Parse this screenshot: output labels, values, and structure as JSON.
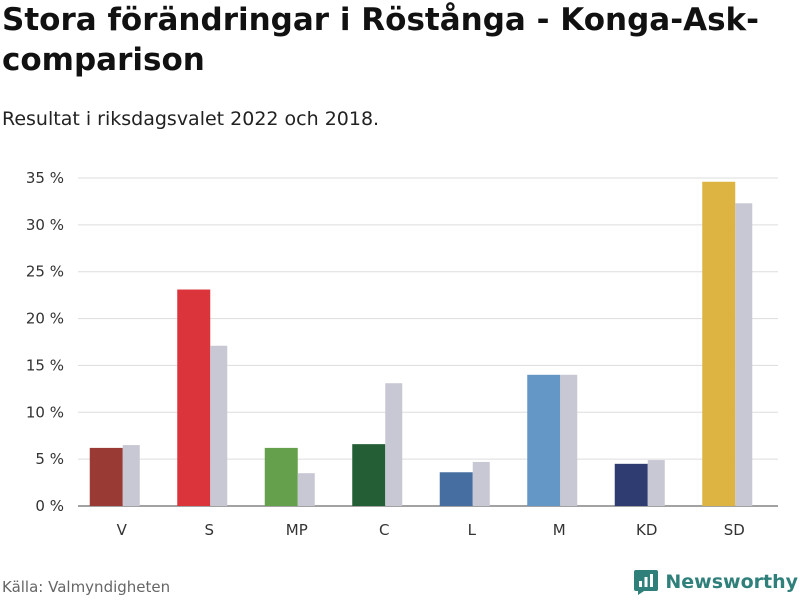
{
  "header": {
    "title": "Stora förändringar i Röstånga - Konga-Ask-comparison",
    "subtitle": "Resultat i riksdagsvalet 2022 och 2018."
  },
  "footer": {
    "source": "Källa: Valmyndigheten",
    "brand": "Newsworthy",
    "brand_icon": "bar-chart-logo-icon"
  },
  "chart_data": {
    "type": "bar",
    "categories": [
      "V",
      "S",
      "MP",
      "C",
      "L",
      "M",
      "KD",
      "SD"
    ],
    "series": [
      {
        "values": [
          6.2,
          23.1,
          6.2,
          6.6,
          3.6,
          14.0,
          4.5,
          34.6
        ],
        "colors": [
          "#9a3a35",
          "#dc343b",
          "#65a14c",
          "#245e35",
          "#466ea0",
          "#6497c6",
          "#2e3c72",
          "#ddb442"
        ]
      },
      {
        "values": [
          6.5,
          17.1,
          3.5,
          13.1,
          4.7,
          14.0,
          4.9,
          32.3
        ],
        "color": "#c8c7d4"
      }
    ],
    "yticks": [
      "0 %",
      "5 %",
      "10 %",
      "15 %",
      "20 %",
      "25 %",
      "30 %",
      "35 %"
    ],
    "ytick_values": [
      0,
      5,
      10,
      15,
      20,
      25,
      30,
      35
    ],
    "ylim": [
      0,
      35
    ],
    "grid": true
  }
}
